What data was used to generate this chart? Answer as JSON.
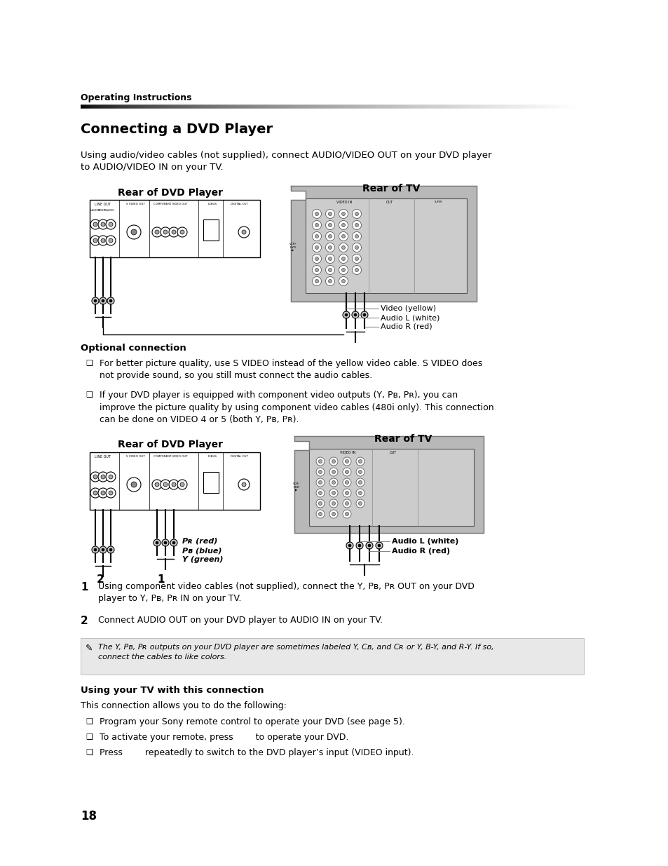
{
  "page_bg": "#ffffff",
  "header_text": "Operating Instructions",
  "title": "Connecting a DVD Player",
  "intro_text": "Using audio/video cables (not supplied), connect AUDIO/VIDEO OUT on your DVD player\nto AUDIO/VIDEO IN on your TV.",
  "diagram1_label_dvd": "Rear of DVD Player",
  "diagram1_label_tv": "Rear of TV",
  "optional_title": "Optional connection",
  "bullet1_text": "For better picture quality, use S VIDEO instead of the yellow video cable. S VIDEO does\nnot provide sound, so you still must connect the audio cables.",
  "bullet2_text": "If your DVD player is equipped with component video outputs (Y, Pʙ, Pʀ), you can\nimprove the picture quality by using component video cables (480i only). This connection\ncan be done on VIDEO 4 or 5 (both Y, Pʙ, Pʀ).",
  "diagram2_label_dvd": "Rear of DVD Player",
  "diagram2_label_tv": "Rear of TV",
  "pr_label": "Pʀ (red)",
  "pb_label": "Pʙ (blue)",
  "y_label": "Y (green)",
  "video_label": "Video (yellow)",
  "audio_l_label": "Audio L (white)",
  "audio_r_label": "Audio R (red)",
  "audio_l2_label": "Audio L (white)",
  "audio_r2_label": "Audio R (red)",
  "step1_num": "1",
  "step1_text": "Using component video cables (not supplied), connect the Y, Pʙ, Pʀ OUT on your DVD\nplayer to Y, Pʙ, Pʀ IN on your TV.",
  "step2_num": "2",
  "step2_text": "Connect AUDIO OUT on your DVD player to AUDIO IN on your TV.",
  "note_text": "The Y, Pʙ, Pʀ outputs on your DVD player are sometimes labeled Y, Cʙ, and Cʀ or Y, B-Y, and R-Y. If so,\nconnect the cables to like colors.",
  "using_tv_title": "Using your TV with this connection",
  "using_tv_intro": "This connection allows you to do the following:",
  "bullet_tv1": "Program your Sony remote control to operate your DVD (see page 5).",
  "bullet_tv2": "To activate your remote, press        to operate your DVD.",
  "bullet_tv3": "Press        repeatedly to switch to the DVD player’s input (VIDEO input).",
  "page_num": "18"
}
